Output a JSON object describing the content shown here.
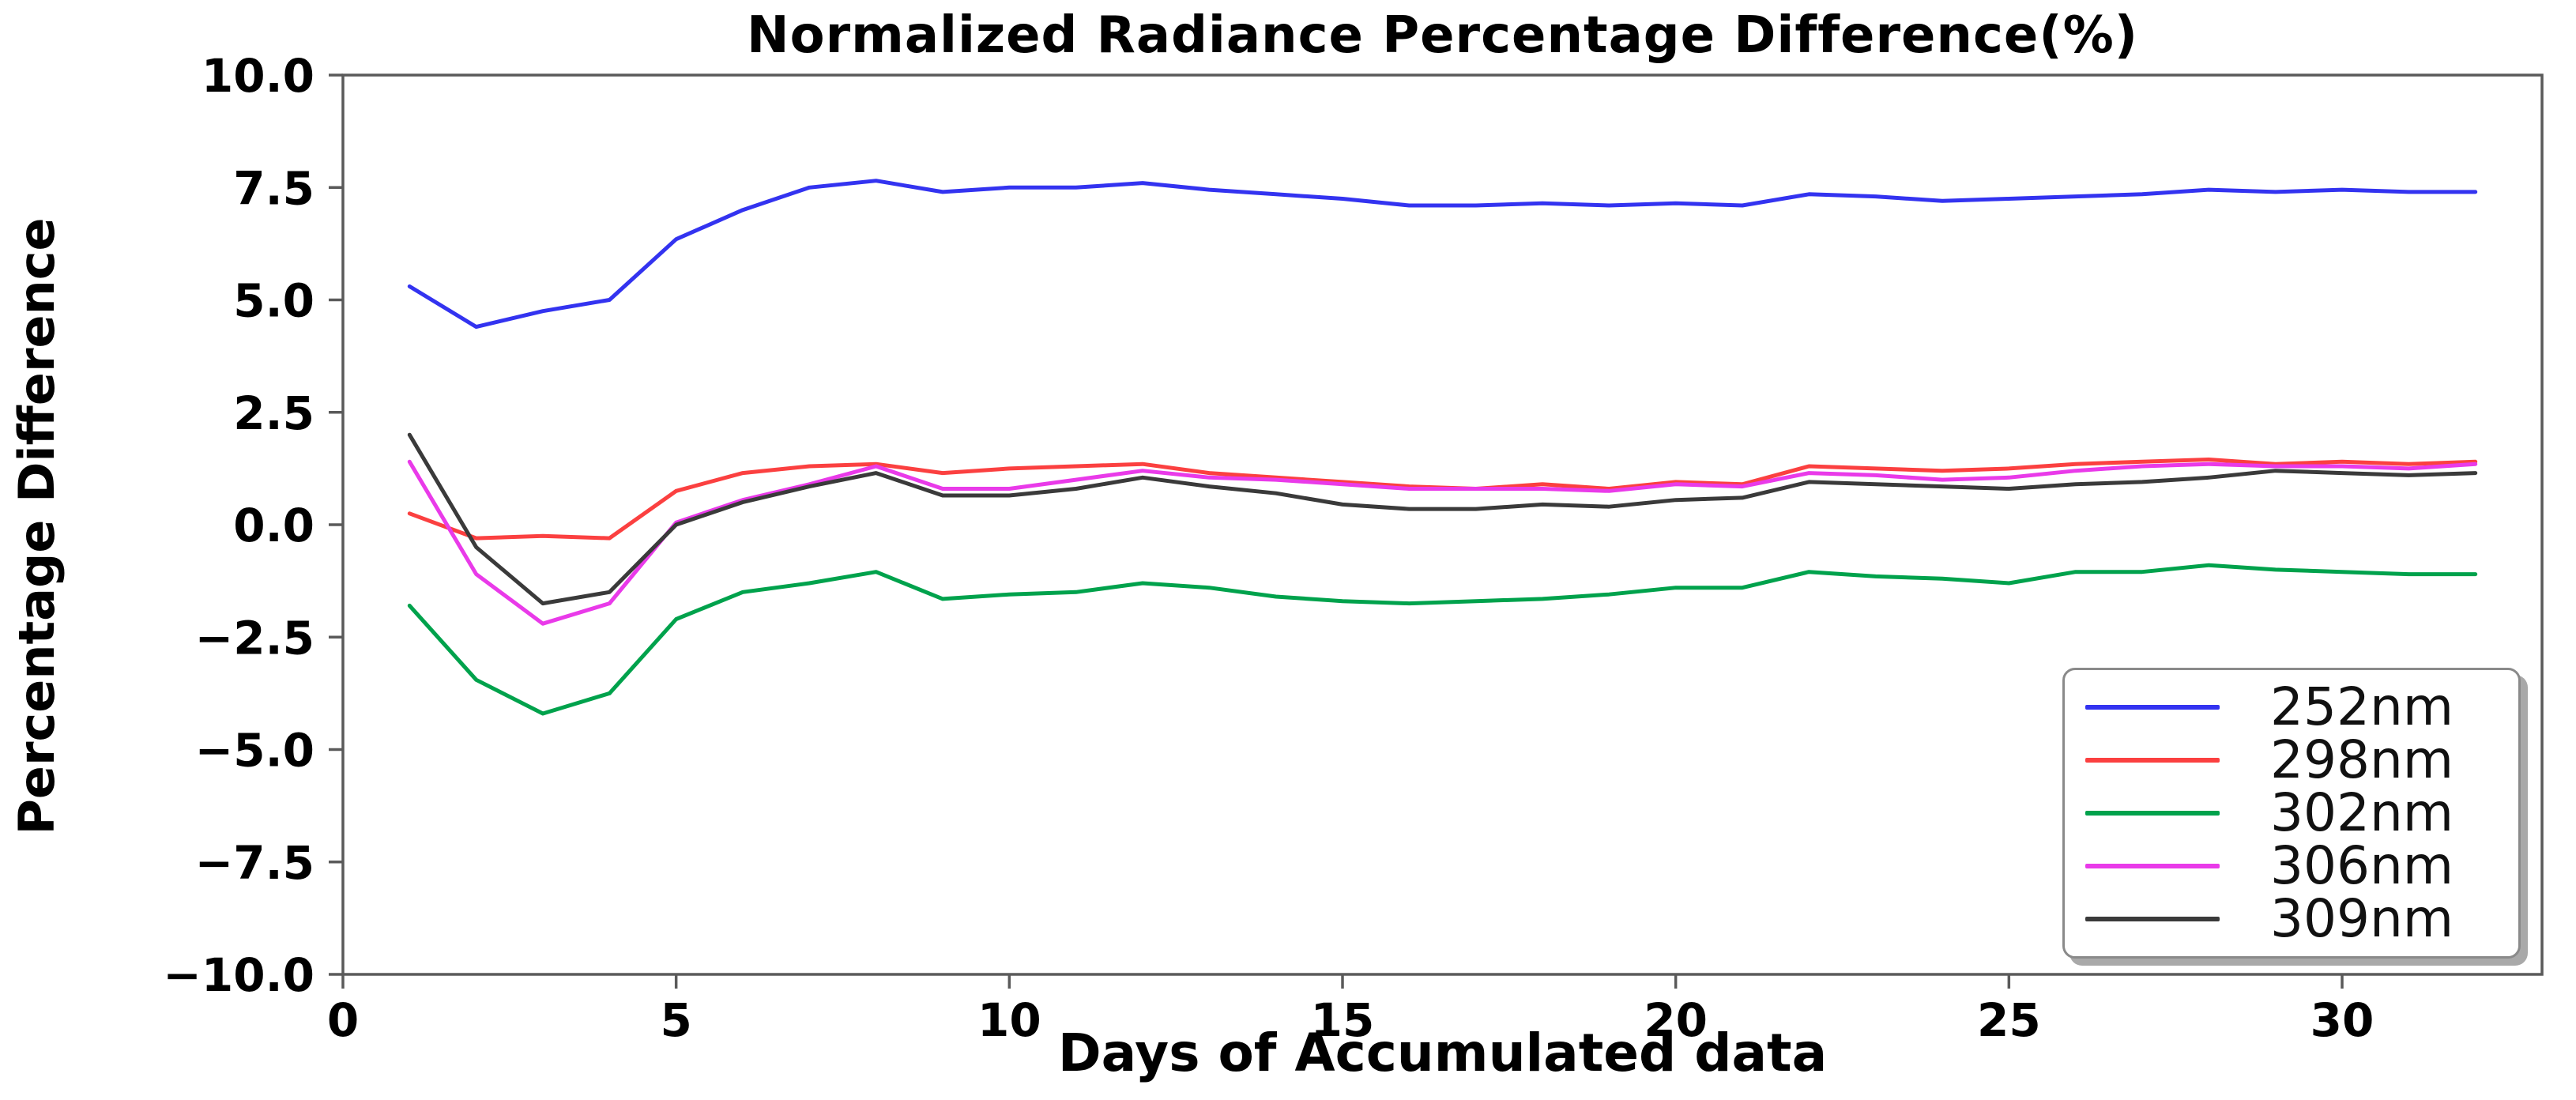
{
  "chart_data": {
    "type": "line",
    "title": "Normalized Radiance Percentage Difference(%)",
    "xlabel": "Days of Accumulated data",
    "ylabel": "Percentage Difference",
    "xlim": [
      0,
      33
    ],
    "ylim": [
      -10,
      10
    ],
    "grid": false,
    "legend_position": "lower right",
    "frame_color": "#5a5a5a",
    "x_ticks": [
      {
        "label": "0",
        "value": 0
      },
      {
        "label": "5",
        "value": 5
      },
      {
        "label": "10",
        "value": 10
      },
      {
        "label": "15",
        "value": 15
      },
      {
        "label": "20",
        "value": 20
      },
      {
        "label": "25",
        "value": 25
      },
      {
        "label": "30",
        "value": 30
      }
    ],
    "y_ticks": [
      {
        "label": "10.0",
        "value": 10.0
      },
      {
        "label": "7.5",
        "value": 7.5
      },
      {
        "label": "5.0",
        "value": 5.0
      },
      {
        "label": "2.5",
        "value": 2.5
      },
      {
        "label": "0.0",
        "value": 0.0
      },
      {
        "label": "−2.5",
        "value": -2.5
      },
      {
        "label": "−5.0",
        "value": -5.0
      },
      {
        "label": "−7.5",
        "value": -7.5
      },
      {
        "label": "−10.0",
        "value": -10.0
      }
    ],
    "x": [
      1,
      2,
      3,
      4,
      5,
      6,
      7,
      8,
      9,
      10,
      11,
      12,
      13,
      14,
      15,
      16,
      17,
      18,
      19,
      20,
      21,
      22,
      23,
      24,
      25,
      26,
      27,
      28,
      29,
      30,
      31,
      32
    ],
    "series": [
      {
        "name": "252nm",
        "color": "#3333f0",
        "values": [
          5.3,
          4.4,
          4.75,
          5.0,
          6.35,
          7.0,
          7.5,
          7.65,
          7.4,
          7.5,
          7.5,
          7.6,
          7.45,
          7.35,
          7.25,
          7.1,
          7.1,
          7.15,
          7.1,
          7.15,
          7.1,
          7.35,
          7.3,
          7.2,
          7.25,
          7.3,
          7.35,
          7.45,
          7.4,
          7.45,
          7.4,
          7.4
        ]
      },
      {
        "name": "298nm",
        "color": "#fb4040",
        "values": [
          0.25,
          -0.3,
          -0.25,
          -0.3,
          0.75,
          1.15,
          1.3,
          1.35,
          1.15,
          1.25,
          1.3,
          1.35,
          1.15,
          1.05,
          0.95,
          0.85,
          0.8,
          0.9,
          0.8,
          0.95,
          0.9,
          1.3,
          1.25,
          1.2,
          1.25,
          1.35,
          1.4,
          1.45,
          1.35,
          1.4,
          1.35,
          1.4
        ]
      },
      {
        "name": "302nm",
        "color": "#00a24c",
        "values": [
          -1.8,
          -3.45,
          -4.2,
          -3.75,
          -2.1,
          -1.5,
          -1.3,
          -1.05,
          -1.65,
          -1.55,
          -1.5,
          -1.3,
          -1.4,
          -1.6,
          -1.7,
          -1.75,
          -1.7,
          -1.65,
          -1.55,
          -1.4,
          -1.4,
          -1.05,
          -1.15,
          -1.2,
          -1.3,
          -1.05,
          -1.05,
          -0.9,
          -1.0,
          -1.05,
          -1.1,
          -1.1
        ]
      },
      {
        "name": "306nm",
        "color": "#e93ae9",
        "values": [
          1.4,
          -1.1,
          -2.2,
          -1.75,
          0.05,
          0.55,
          0.9,
          1.3,
          0.8,
          0.8,
          1.0,
          1.2,
          1.05,
          1.0,
          0.9,
          0.8,
          0.8,
          0.8,
          0.75,
          0.9,
          0.85,
          1.15,
          1.1,
          1.0,
          1.05,
          1.2,
          1.3,
          1.35,
          1.3,
          1.3,
          1.25,
          1.35
        ]
      },
      {
        "name": "309nm",
        "color": "#3a3a3a",
        "values": [
          2.0,
          -0.5,
          -1.75,
          -1.5,
          0.0,
          0.5,
          0.85,
          1.15,
          0.65,
          0.65,
          0.8,
          1.05,
          0.85,
          0.7,
          0.45,
          0.35,
          0.35,
          0.45,
          0.4,
          0.55,
          0.6,
          0.95,
          0.9,
          0.85,
          0.8,
          0.9,
          0.95,
          1.05,
          1.2,
          1.15,
          1.1,
          1.15
        ]
      }
    ]
  }
}
